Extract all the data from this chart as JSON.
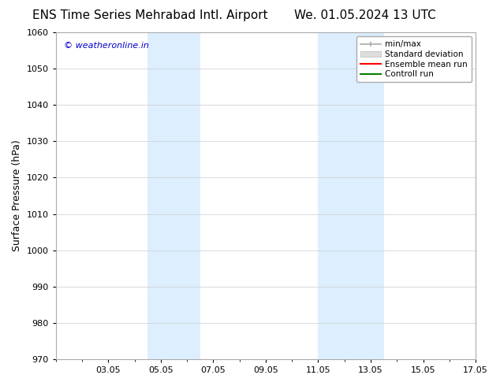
{
  "title_left": "ENS Time Series Mehrabad Intl. Airport",
  "title_right": "We. 01.05.2024 13 UTC",
  "ylabel": "Surface Pressure (hPa)",
  "ylim": [
    970,
    1060
  ],
  "yticks": [
    970,
    980,
    990,
    1000,
    1010,
    1020,
    1030,
    1040,
    1050,
    1060
  ],
  "xtick_labels": [
    "03.05",
    "05.05",
    "07.05",
    "09.05",
    "11.05",
    "13.05",
    "15.05",
    "17.05"
  ],
  "xtick_positions": [
    2,
    4,
    6,
    8,
    10,
    12,
    14,
    16
  ],
  "xlim": [
    0,
    16
  ],
  "shaded_bands": [
    {
      "x_start": 3.5,
      "x_end": 5.5
    },
    {
      "x_start": 10.0,
      "x_end": 12.5
    }
  ],
  "watermark": "© weatheronline.in",
  "watermark_color": "#0000cc",
  "bg_color": "#ffffff",
  "plot_bg_color": "#ffffff",
  "grid_color": "#cccccc",
  "shade_color": "#ddeeff",
  "legend_items": [
    {
      "label": "min/max",
      "color": "#aaaaaa",
      "lw": 1.5
    },
    {
      "label": "Standard deviation",
      "color": "#cccccc",
      "lw": 6
    },
    {
      "label": "Ensemble mean run",
      "color": "#ff0000",
      "lw": 1.5
    },
    {
      "label": "Controll run",
      "color": "#008000",
      "lw": 1.5
    }
  ],
  "title_fontsize": 11,
  "ylabel_fontsize": 9,
  "tick_fontsize": 8,
  "legend_fontsize": 7.5,
  "watermark_fontsize": 8
}
